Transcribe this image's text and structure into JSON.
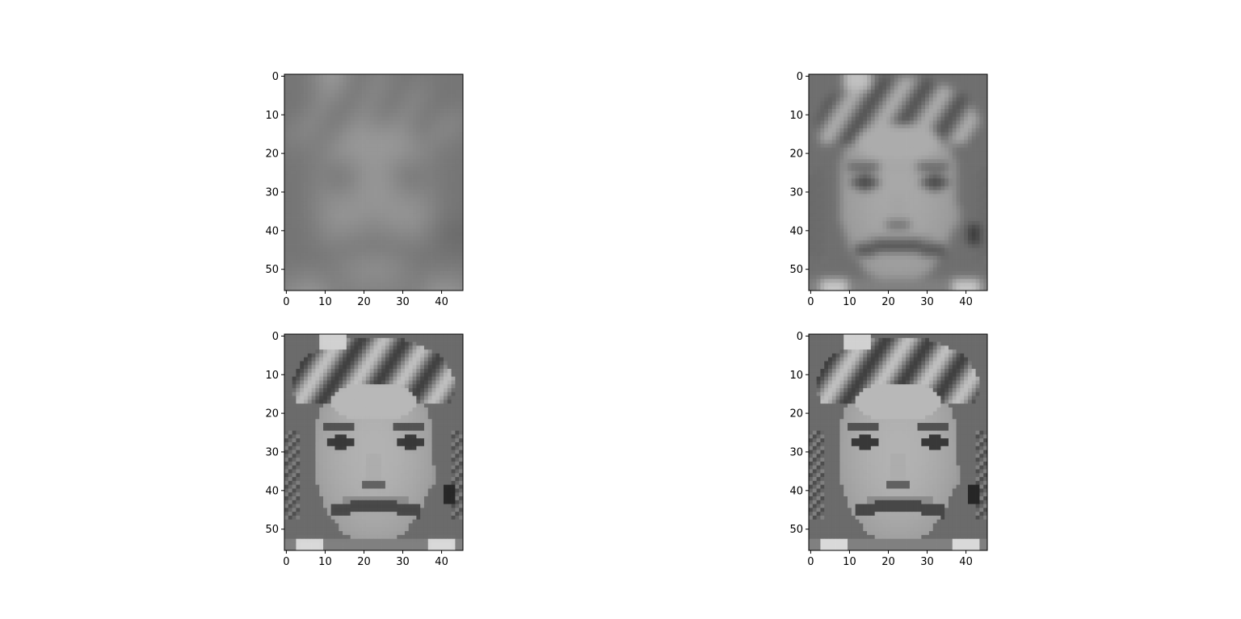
{
  "figure": {
    "description_grid": "2x2 subplots of grayscale face images (PCA reconstructions)",
    "colormap": "gray"
  },
  "chart_data": [
    {
      "type": "heatmap",
      "name": "subplot-top-left",
      "position": "row 1, column 1",
      "image_shape": [
        56,
        46
      ],
      "reconstruction_quality": "very blurry (few components)",
      "xlim": [
        -0.5,
        45.5
      ],
      "ylim": [
        55.5,
        -0.5
      ],
      "xticks": [
        0,
        10,
        20,
        30,
        40
      ],
      "yticks": [
        0,
        10,
        20,
        30,
        40,
        50
      ],
      "xlabel": "",
      "ylabel": "",
      "title": "",
      "blur_radius": 3.2,
      "contrast": 0.45
    },
    {
      "type": "heatmap",
      "name": "subplot-top-right",
      "position": "row 1, column 2",
      "image_shape": [
        56,
        46
      ],
      "reconstruction_quality": "partially recognizable",
      "xlim": [
        -0.5,
        45.5
      ],
      "ylim": [
        55.5,
        -0.5
      ],
      "xticks": [
        0,
        10,
        20,
        30,
        40
      ],
      "yticks": [
        0,
        10,
        20,
        30,
        40,
        50
      ],
      "xlabel": "",
      "ylabel": "",
      "title": "",
      "blur_radius": 1.1,
      "contrast": 0.8
    },
    {
      "type": "heatmap",
      "name": "subplot-bottom-left",
      "position": "row 2, column 1",
      "image_shape": [
        56,
        46
      ],
      "reconstruction_quality": "nearly exact",
      "xlim": [
        -0.5,
        45.5
      ],
      "ylim": [
        55.5,
        -0.5
      ],
      "xticks": [
        0,
        10,
        20,
        30,
        40
      ],
      "yticks": [
        0,
        10,
        20,
        30,
        40,
        50
      ],
      "xlabel": "",
      "ylabel": "",
      "title": "",
      "blur_radius": 0.35,
      "contrast": 1.0
    },
    {
      "type": "heatmap",
      "name": "subplot-bottom-right",
      "position": "row 2, column 2",
      "image_shape": [
        56,
        46
      ],
      "reconstruction_quality": "original image",
      "xlim": [
        -0.5,
        45.5
      ],
      "ylim": [
        55.5,
        -0.5
      ],
      "xticks": [
        0,
        10,
        20,
        30,
        40
      ],
      "yticks": [
        0,
        10,
        20,
        30,
        40,
        50
      ],
      "xlabel": "",
      "ylabel": "",
      "title": "",
      "blur_radius": 0.0,
      "contrast": 1.0
    }
  ]
}
